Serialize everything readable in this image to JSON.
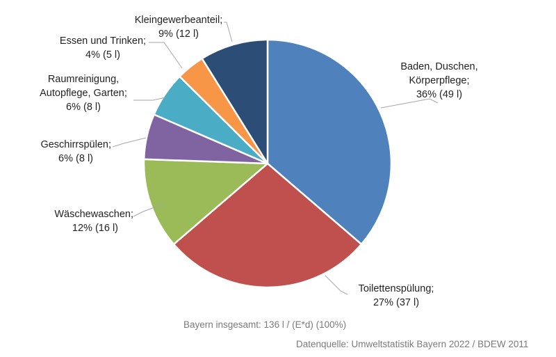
{
  "chart_data": {
    "type": "pie",
    "slices": [
      {
        "name": "Baden, Duschen, Körperpflege;",
        "label_lines": [
          "Baden, Duschen,",
          "Körperpflege;",
          "36% (49 l)"
        ],
        "value": 49,
        "percent": 36,
        "color": "#4f81bd"
      },
      {
        "name": "Toilettenspülung;",
        "label_lines": [
          "Toilettenspülung;",
          "27% (37 l)"
        ],
        "value": 37,
        "percent": 27,
        "color": "#c0504d"
      },
      {
        "name": "Wäschewaschen;",
        "label_lines": [
          "Wäschewaschen;",
          "12% (16 l)"
        ],
        "value": 16,
        "percent": 12,
        "color": "#9bbb59"
      },
      {
        "name": "Geschirrspülen;",
        "label_lines": [
          "Geschirrspülen;",
          "6% (8 l)"
        ],
        "value": 8,
        "percent": 6,
        "color": "#8064a2"
      },
      {
        "name": "Raumreinigung, Autopflege, Garten;",
        "label_lines": [
          "Raumreinigung,",
          "Autopflege, Garten;",
          "6% (8 l)"
        ],
        "value": 8,
        "percent": 6,
        "color": "#4bacc6"
      },
      {
        "name": "Essen und Trinken;",
        "label_lines": [
          "Essen und Trinken;",
          "4% (5 l)"
        ],
        "value": 5,
        "percent": 4,
        "color": "#f79646"
      },
      {
        "name": "Kleingewerbeanteil;",
        "label_lines": [
          "Kleingewerbeanteil;",
          "9% (12 l)"
        ],
        "value": 12,
        "percent": 9,
        "color": "#2c4d75"
      }
    ],
    "total_text": "Bayern insgesamt: 136 l / (E*d) (100%)",
    "source": "Datenquelle: Umweltstatistik Bayern 2022 / BDEW 2011"
  }
}
